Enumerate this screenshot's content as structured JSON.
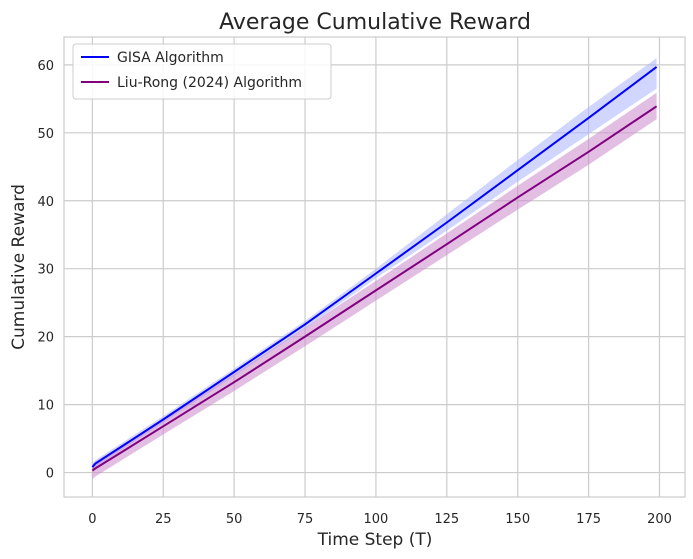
{
  "chart_data": {
    "type": "line",
    "title": "Average Cumulative Reward",
    "xlabel": "Time Step (T)",
    "ylabel": "Cumulative Reward",
    "xlim": [
      -10,
      209
    ],
    "ylim": [
      -3.6,
      64.1
    ],
    "xticks": [
      0,
      25,
      50,
      75,
      100,
      125,
      150,
      175,
      200
    ],
    "yticks": [
      0,
      10,
      20,
      30,
      40,
      50,
      60
    ],
    "grid": true,
    "legend_position": "top-left",
    "x": [
      0,
      1,
      25,
      50,
      75,
      100,
      125,
      150,
      175,
      199
    ],
    "series": [
      {
        "name": "GISA Algorithm",
        "color": "#0000ff",
        "band_color": "#aab4ff",
        "values": [
          0.8,
          1.3,
          7.8,
          14.8,
          21.8,
          29.3,
          36.8,
          44.5,
          52.2,
          59.7
        ],
        "lower": [
          0.2,
          0.8,
          7.3,
          14.2,
          21.2,
          28.6,
          35.6,
          42.8,
          49.8,
          56.5
        ],
        "upper": [
          1.3,
          1.8,
          8.3,
          15.3,
          22.3,
          30.0,
          38.0,
          46.0,
          53.8,
          61.0
        ]
      },
      {
        "name": "Liu-Rong (2024) Algorithm",
        "color": "#800080",
        "band_color": "#cc88cc",
        "values": [
          0.3,
          0.6,
          6.8,
          13.3,
          20.0,
          26.8,
          33.6,
          40.5,
          47.2,
          53.9
        ],
        "lower": [
          -1.0,
          -0.6,
          5.6,
          12.0,
          18.6,
          25.3,
          32.0,
          38.7,
          45.3,
          52.0
        ],
        "upper": [
          1.2,
          1.6,
          7.8,
          14.5,
          21.3,
          28.2,
          35.2,
          42.2,
          49.1,
          55.9
        ]
      }
    ]
  }
}
